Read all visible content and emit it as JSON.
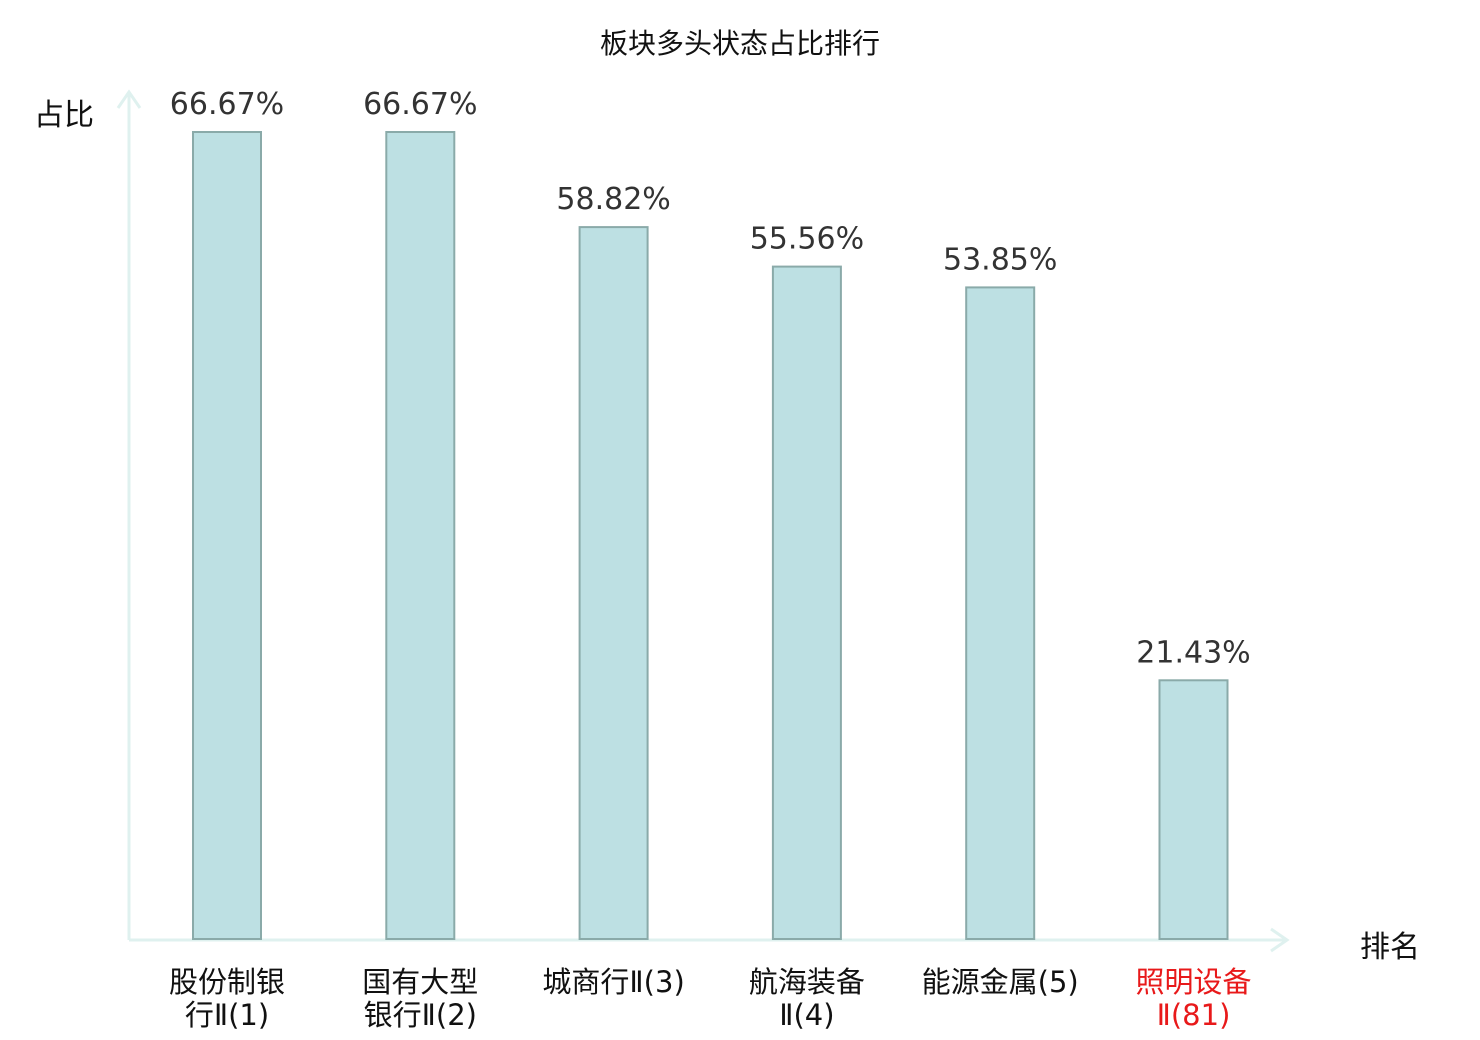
{
  "chart_data": {
    "type": "bar",
    "title": "板块多头状态占比排行",
    "ylabel": "占比",
    "xlabel": "排名",
    "categories": [
      [
        "股份制银",
        "行Ⅱ(1)"
      ],
      [
        "国有大型",
        "银行Ⅱ(2)"
      ],
      [
        "城商行Ⅱ(3)",
        ""
      ],
      [
        "航海装备",
        "Ⅱ(4)"
      ],
      [
        "能源金属(5)",
        ""
      ],
      [
        "照明设备",
        "Ⅱ(81)"
      ]
    ],
    "values": [
      66.67,
      66.67,
      58.82,
      55.56,
      53.85,
      21.43
    ],
    "value_labels": [
      "66.67%",
      "66.67%",
      "58.82%",
      "55.56%",
      "53.85%",
      "21.43%"
    ],
    "highlight_index": 5,
    "ylim": [
      0,
      70
    ],
    "grid": false,
    "legend": "none"
  },
  "colors": {
    "bar_fill": "#bde0e3",
    "bar_stroke": "#8aaaa9",
    "axis": "#dff1ef",
    "text": "#111111",
    "value_text": "#333333",
    "highlight": "#e8191a"
  }
}
